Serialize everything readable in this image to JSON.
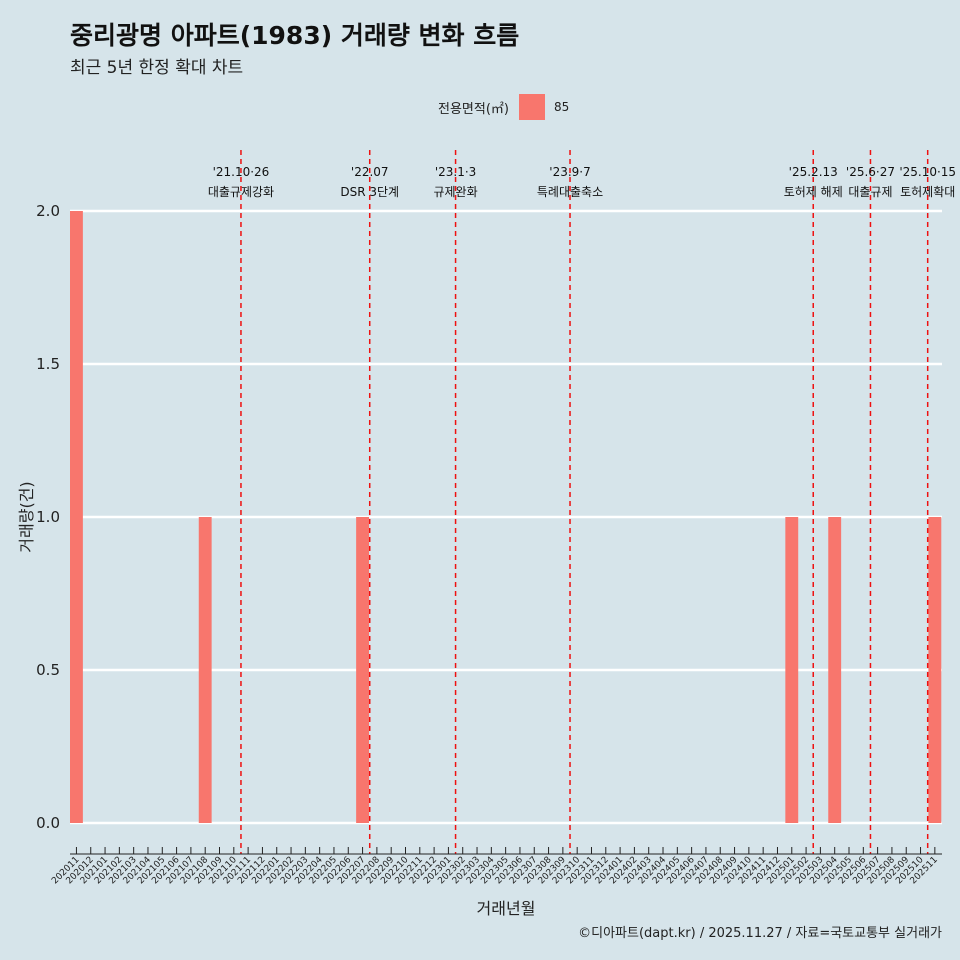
{
  "title": "중리광명 아파트(1983) 거래량 변화 흐름",
  "subtitle": "최근 5년 한정 확대 차트",
  "legend": {
    "title": "전용면적(㎡)",
    "item": "85"
  },
  "footer": "©디아파트(dapt.kr) / 2025.11.27 / 자료=국토교통부 실거래가",
  "colors": {
    "bar": "#f8766d",
    "vline": "#ee1111",
    "grid": "#ffffff",
    "background": "#d6e4ea"
  },
  "chart_data": {
    "type": "bar",
    "title": "중리광명 아파트(1983) 거래량 변화 흐름",
    "xlabel": "거래년월",
    "ylabel": "거래량(건)",
    "ylim": [
      0,
      2
    ],
    "yticks": [
      "0.0",
      "0.5",
      "1.0",
      "1.5",
      "2.0"
    ],
    "categories": [
      "202011",
      "202012",
      "202101",
      "202102",
      "202103",
      "202104",
      "202105",
      "202106",
      "202107",
      "202108",
      "202109",
      "202110",
      "202111",
      "202112",
      "202201",
      "202202",
      "202203",
      "202204",
      "202205",
      "202206",
      "202207",
      "202208",
      "202209",
      "202210",
      "202211",
      "202212",
      "202301",
      "202302",
      "202303",
      "202304",
      "202305",
      "202306",
      "202307",
      "202308",
      "202309",
      "202310",
      "202311",
      "202312",
      "202401",
      "202402",
      "202403",
      "202404",
      "202405",
      "202406",
      "202407",
      "202408",
      "202409",
      "202410",
      "202411",
      "202412",
      "202501",
      "202502",
      "202503",
      "202504",
      "202505",
      "202506",
      "202507",
      "202508",
      "202509",
      "202510",
      "202511"
    ],
    "series": [
      {
        "name": "85",
        "values": [
          2,
          0,
          0,
          0,
          0,
          0,
          0,
          0,
          0,
          1,
          0,
          0,
          0,
          0,
          0,
          0,
          0,
          0,
          0,
          0,
          1,
          0,
          0,
          0,
          0,
          0,
          0,
          0,
          0,
          0,
          0,
          0,
          0,
          0,
          0,
          0,
          0,
          0,
          0,
          0,
          0,
          0,
          0,
          0,
          0,
          0,
          0,
          0,
          0,
          0,
          1,
          0,
          0,
          1,
          0,
          0,
          0,
          0,
          0,
          0,
          1
        ]
      }
    ],
    "annotations": [
      {
        "date": "'21.10·26",
        "label": "대출규제강화",
        "x": 11.5
      },
      {
        "date": "'22.07",
        "label": "DSR 3단계",
        "x": 20.5
      },
      {
        "date": "'23.1·3",
        "label": "규제완화",
        "x": 26.5
      },
      {
        "date": "'23.9·7",
        "label": "특례대출축소",
        "x": 34.5
      },
      {
        "date": "'25.2.13",
        "label": "토허제 해제",
        "x": 51.5
      },
      {
        "date": "'25.6·27",
        "label": "대출규제",
        "x": 55.5
      },
      {
        "date": "'25.10·15",
        "label": "토허제확대",
        "x": 59.5
      }
    ]
  }
}
